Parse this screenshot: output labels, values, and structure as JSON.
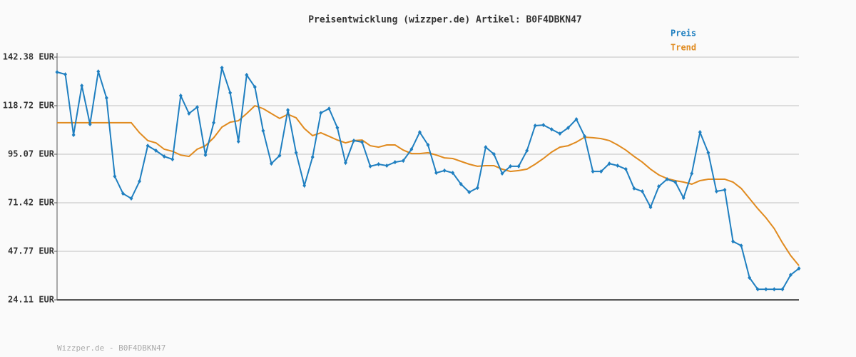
{
  "chart_data": {
    "type": "line",
    "title": "Preisentwicklung (wizzper.de) Artikel: B0F4DBKN47",
    "source": "Wizzper.de - B0F4DBKN47",
    "categories": [
      null,
      null,
      null,
      null,
      null,
      null,
      null,
      null,
      null,
      null,
      null,
      null,
      null,
      null,
      null,
      null,
      null,
      null,
      null,
      null,
      null,
      null,
      null,
      null,
      null,
      null,
      null,
      null,
      null,
      null,
      null,
      null,
      null,
      null,
      null,
      null,
      null,
      null,
      null,
      null,
      null,
      null,
      null,
      null,
      null,
      null,
      null,
      null,
      null,
      null,
      null,
      null,
      null,
      null,
      null,
      null,
      null,
      null,
      null,
      null,
      null,
      null,
      null,
      null,
      null,
      null,
      null,
      null,
      null,
      null,
      null,
      null,
      null,
      null,
      null,
      null,
      null,
      null,
      null,
      null,
      null,
      null,
      null,
      null,
      null,
      null,
      null,
      null,
      null,
      null,
      null
    ],
    "series": [
      {
        "name": "Preis",
        "color": "#1f7fc0",
        "markers": true,
        "values": [
          135.07,
          134.0,
          104.46,
          128.46,
          109.67,
          135.4,
          122.5,
          84.3,
          75.9,
          73.5,
          81.9,
          99.2,
          96.8,
          94.0,
          92.6,
          123.6,
          114.9,
          118.0,
          94.7,
          110.4,
          137.2,
          125.0,
          101.3,
          133.7,
          127.8,
          106.5,
          90.5,
          94.4,
          116.6,
          95.8,
          79.8,
          93.7,
          115.2,
          117.3,
          108.0,
          90.9,
          101.7,
          101.0,
          89.2,
          90.2,
          89.5,
          91.2,
          91.9,
          97.5,
          105.8,
          99.6,
          86.0,
          87.1,
          86.0,
          80.5,
          76.6,
          78.7,
          98.5,
          95.1,
          85.7,
          89.2,
          89.2,
          96.8,
          109.0,
          109.3,
          107.2,
          105.1,
          107.9,
          112.1,
          103.8,
          86.7,
          86.7,
          90.5,
          89.5,
          87.8,
          78.4,
          77.0,
          69.3,
          79.4,
          82.9,
          81.5,
          73.8,
          85.7,
          105.8,
          95.8,
          77.0,
          77.7,
          52.6,
          50.5,
          34.9,
          29.3,
          29.3,
          29.3,
          29.3,
          36.3,
          39.4
        ]
      },
      {
        "name": "Trend",
        "color": "#e08a1e",
        "markers": false,
        "values": [
          110.4,
          110.4,
          110.4,
          110.4,
          110.4,
          110.4,
          110.4,
          110.4,
          110.4,
          110.4,
          105.5,
          101.7,
          100.6,
          97.5,
          96.5,
          94.7,
          94.0,
          97.5,
          99.2,
          103.1,
          108.3,
          110.7,
          111.4,
          114.9,
          118.7,
          117.3,
          114.9,
          112.5,
          114.5,
          112.8,
          107.6,
          104.1,
          105.5,
          103.8,
          102.0,
          100.6,
          101.7,
          102.0,
          99.2,
          98.5,
          99.6,
          99.6,
          97.1,
          95.4,
          95.4,
          95.8,
          94.7,
          93.3,
          93.0,
          91.6,
          90.2,
          89.2,
          89.5,
          89.5,
          87.8,
          86.7,
          87.1,
          87.8,
          90.2,
          93.0,
          96.1,
          98.5,
          99.2,
          101.0,
          103.4,
          103.1,
          102.7,
          101.7,
          99.6,
          97.1,
          94.0,
          91.2,
          87.8,
          85.0,
          83.2,
          82.2,
          81.5,
          80.5,
          82.2,
          82.9,
          82.9,
          82.9,
          81.5,
          78.4,
          73.5,
          68.6,
          64.1,
          58.9,
          51.9,
          45.7,
          40.8
        ]
      }
    ],
    "ylim": [
      24.11,
      142.38
    ],
    "yticks": [
      {
        "value": 24.11,
        "label": "24.11 EUR"
      },
      {
        "value": 47.77,
        "label": "47.77 EUR"
      },
      {
        "value": 71.42,
        "label": "71.42 EUR"
      },
      {
        "value": 95.07,
        "label": "95.07 EUR"
      },
      {
        "value": 118.72,
        "label": "118.72 EUR"
      },
      {
        "value": 142.38,
        "label": "142.38 EUR"
      }
    ],
    "grid": true,
    "legend": "top-right"
  }
}
